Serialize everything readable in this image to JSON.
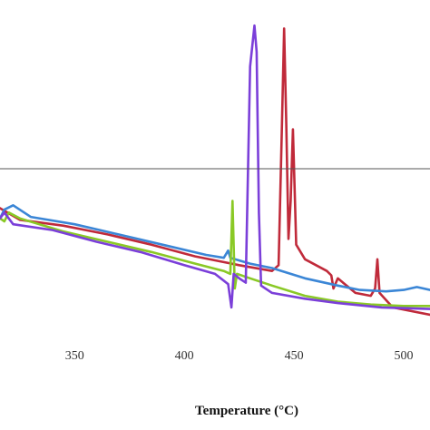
{
  "chart_data": {
    "type": "line",
    "title": "",
    "xlabel": "Temperature (°C)",
    "ylabel": "",
    "xlim": [
      316,
      512
    ],
    "ylim": [
      -1.0,
      1.0
    ],
    "x_ticks": [
      350,
      400,
      450,
      500
    ],
    "x_tick_labels": [
      "350",
      "400",
      "450",
      "500"
    ],
    "zero_line_y": 0,
    "grid": false,
    "legend": "none",
    "series": [
      {
        "color": "#c02a3a",
        "points": [
          [
            316,
            -0.27
          ],
          [
            325,
            -0.35
          ],
          [
            345,
            -0.39
          ],
          [
            365,
            -0.45
          ],
          [
            385,
            -0.52
          ],
          [
            405,
            -0.6
          ],
          [
            425,
            -0.66
          ],
          [
            440,
            -0.7
          ],
          [
            443,
            -0.66
          ],
          [
            444.5,
            0.3
          ],
          [
            445.5,
            0.96
          ],
          [
            446.5,
            0.3
          ],
          [
            447.5,
            -0.48
          ],
          [
            448.5,
            -0.22
          ],
          [
            449.5,
            0.27
          ],
          [
            450.5,
            -0.25
          ],
          [
            451,
            -0.52
          ],
          [
            455,
            -0.62
          ],
          [
            465,
            -0.7
          ],
          [
            467,
            -0.73
          ],
          [
            468,
            -0.82
          ],
          [
            470,
            -0.75
          ],
          [
            478,
            -0.85
          ],
          [
            485,
            -0.87
          ],
          [
            487,
            -0.82
          ],
          [
            488,
            -0.62
          ],
          [
            489,
            -0.85
          ],
          [
            495,
            -0.95
          ],
          [
            512,
            -1.0
          ]
        ]
      },
      {
        "color": "#3b86d6",
        "points": [
          [
            316,
            -0.34
          ],
          [
            318,
            -0.28
          ],
          [
            322,
            -0.25
          ],
          [
            330,
            -0.33
          ],
          [
            350,
            -0.38
          ],
          [
            370,
            -0.45
          ],
          [
            390,
            -0.52
          ],
          [
            410,
            -0.59
          ],
          [
            418,
            -0.61
          ],
          [
            420,
            -0.56
          ],
          [
            421,
            -0.61
          ],
          [
            430,
            -0.65
          ],
          [
            440,
            -0.68
          ],
          [
            455,
            -0.75
          ],
          [
            470,
            -0.8
          ],
          [
            480,
            -0.83
          ],
          [
            492,
            -0.84
          ],
          [
            500,
            -0.83
          ],
          [
            506,
            -0.81
          ],
          [
            512,
            -0.83
          ]
        ]
      },
      {
        "color": "#8ac926",
        "points": [
          [
            316,
            -0.34
          ],
          [
            318,
            -0.36
          ],
          [
            320,
            -0.3
          ],
          [
            325,
            -0.34
          ],
          [
            345,
            -0.43
          ],
          [
            365,
            -0.5
          ],
          [
            385,
            -0.57
          ],
          [
            405,
            -0.65
          ],
          [
            418,
            -0.7
          ],
          [
            421,
            -0.72
          ],
          [
            422,
            -0.22
          ],
          [
            423,
            -0.82
          ],
          [
            424,
            -0.72
          ],
          [
            430,
            -0.75
          ],
          [
            440,
            -0.8
          ],
          [
            455,
            -0.87
          ],
          [
            470,
            -0.91
          ],
          [
            485,
            -0.93
          ],
          [
            500,
            -0.94
          ],
          [
            512,
            -0.94
          ]
        ]
      },
      {
        "color": "#7b3fd9",
        "points": [
          [
            316,
            -0.34
          ],
          [
            318,
            -0.3
          ],
          [
            322,
            -0.38
          ],
          [
            340,
            -0.42
          ],
          [
            360,
            -0.5
          ],
          [
            380,
            -0.57
          ],
          [
            400,
            -0.66
          ],
          [
            414,
            -0.72
          ],
          [
            420,
            -0.79
          ],
          [
            421.5,
            -0.95
          ],
          [
            422.5,
            -0.72
          ],
          [
            425,
            -0.75
          ],
          [
            428,
            -0.78
          ],
          [
            430,
            0.7
          ],
          [
            432,
            0.98
          ],
          [
            433,
            0.8
          ],
          [
            434,
            -0.3
          ],
          [
            435,
            -0.8
          ],
          [
            440,
            -0.85
          ],
          [
            455,
            -0.89
          ],
          [
            470,
            -0.92
          ],
          [
            490,
            -0.95
          ],
          [
            512,
            -0.96
          ]
        ]
      }
    ]
  }
}
